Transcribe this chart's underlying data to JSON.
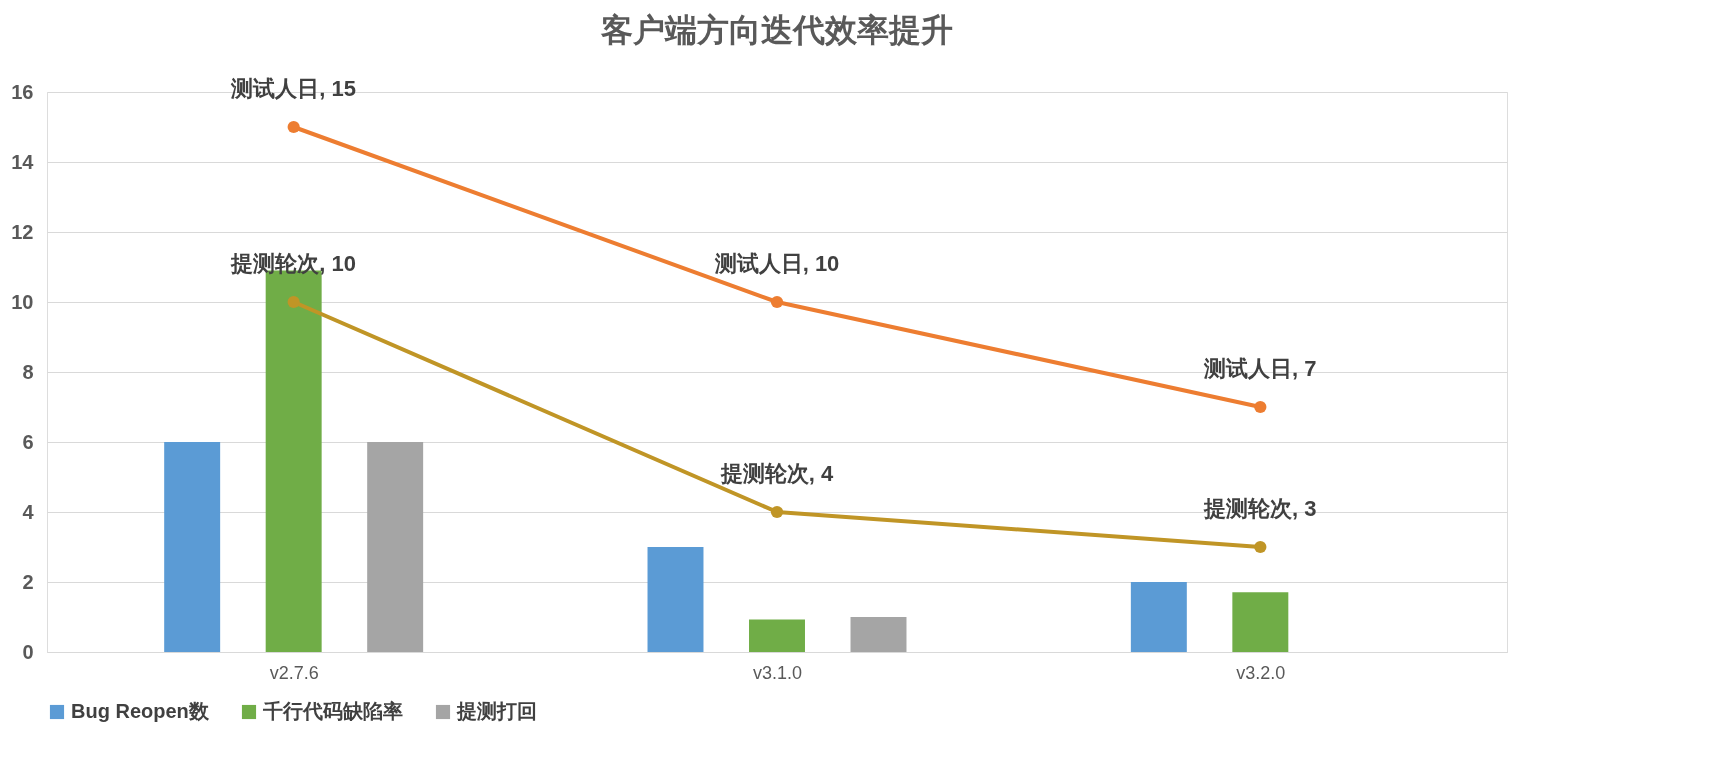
{
  "chart_data": {
    "type": "bar",
    "title": "客户端方向迭代效率提升",
    "categories": [
      "v2.7.6",
      "v3.1.0",
      "v3.2.0"
    ],
    "series": [
      {
        "name": "Bug Reopen数",
        "color": "#5b9bd5",
        "values": [
          6,
          3,
          2
        ]
      },
      {
        "name": "千行代码缺陷率",
        "color": "#70ad47",
        "values": [
          10.9,
          0.93,
          1.71
        ]
      },
      {
        "name": "提测打回",
        "color": "#a5a5a5",
        "values": [
          6,
          1.0,
          null
        ]
      },
      {
        "type": "line",
        "color": "#ed7d31",
        "values": [
          15,
          10,
          7
        ],
        "value_labels": [
          "测试人日, 15",
          "测试人日, 10",
          "测试人日, 7"
        ]
      },
      {
        "type": "line",
        "color": "#c09526",
        "values": [
          10,
          4,
          3
        ],
        "value_labels": [
          "提测轮次, 10",
          "提测轮次, 4",
          "提测轮次, 3"
        ]
      }
    ],
    "ylim": [
      0,
      16
    ],
    "yticks": [
      0,
      2,
      4,
      6,
      8,
      10,
      12,
      14,
      16
    ],
    "grid": "y",
    "legend": "bottom",
    "marker": "circle"
  }
}
